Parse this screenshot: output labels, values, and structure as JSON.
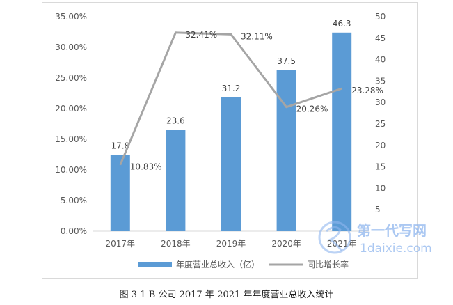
{
  "caption": "图 3-1   B 公司 2017 年-2021 年年度营业总收入统计",
  "watermark": {
    "line1": "第一代写网",
    "line2": "1daixie.com"
  },
  "chart_data": {
    "type": "bar+line",
    "categories": [
      "2017年",
      "2018年",
      "2019年",
      "2020年",
      "2021年"
    ],
    "series": [
      {
        "name": "年度营业总收入（亿）",
        "type": "bar",
        "axis": "right",
        "values": [
          17.8,
          23.6,
          31.2,
          37.5,
          46.3
        ],
        "labels": [
          "17.8",
          "23.6",
          "31.2",
          "37.5",
          "46.3"
        ],
        "color": "#5b9bd5"
      },
      {
        "name": "同比增长率",
        "type": "line",
        "axis": "left",
        "values": [
          10.83,
          32.41,
          32.11,
          20.26,
          23.28
        ],
        "labels": [
          "10.83%",
          "32.41%",
          "32.11%",
          "20.26%",
          "23.28%"
        ],
        "color": "#a5a5a5"
      }
    ],
    "left_axis": {
      "min": 0,
      "max": 35,
      "step": 5,
      "ticks": [
        "0.00%",
        "5.00%",
        "10.00%",
        "15.00%",
        "20.00%",
        "25.00%",
        "30.00%",
        "35.00%"
      ]
    },
    "right_axis": {
      "min": 0,
      "max": 50,
      "step": 5,
      "ticks": [
        "5",
        "10",
        "15",
        "20",
        "25",
        "30",
        "35",
        "40",
        "45",
        "50"
      ]
    },
    "legend": "bottom",
    "grid": false
  }
}
